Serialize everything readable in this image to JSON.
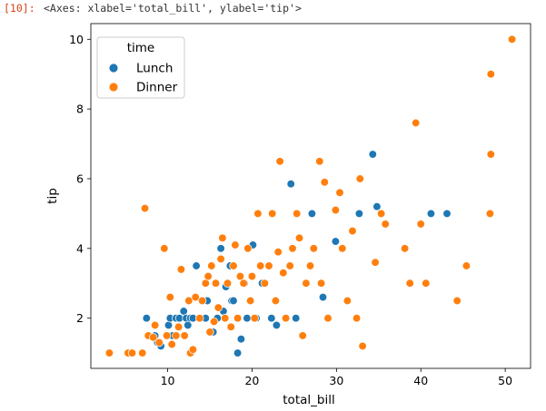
{
  "cell": {
    "prompt": "[10]:",
    "repr": "<Axes: xlabel='total_bill', ylabel='tip'>"
  },
  "colors": {
    "Lunch": "#1f77b4",
    "Dinner": "#ff7f0e"
  },
  "chart_data": {
    "type": "scatter",
    "xlabel": "total_bill",
    "ylabel": "tip",
    "xlim": [
      0.9,
      53
    ],
    "ylim": [
      0.56,
      10.45
    ],
    "xticks": [
      10,
      20,
      30,
      40,
      50
    ],
    "yticks": [
      2,
      4,
      6,
      8,
      10
    ],
    "legend": {
      "title": "time",
      "position": "top-left",
      "entries": [
        "Lunch",
        "Dinner"
      ]
    },
    "series": [
      {
        "name": "Lunch",
        "points": [
          [
            7.5,
            2.0
          ],
          [
            8.5,
            1.5
          ],
          [
            8.8,
            1.3
          ],
          [
            9.2,
            1.2
          ],
          [
            10.1,
            1.8
          ],
          [
            10.3,
            2.0
          ],
          [
            10.6,
            1.5
          ],
          [
            11.0,
            2.0
          ],
          [
            11.4,
            2.0
          ],
          [
            11.9,
            2.2
          ],
          [
            12.2,
            2.0
          ],
          [
            12.4,
            1.8
          ],
          [
            12.7,
            2.0
          ],
          [
            13.0,
            2.0
          ],
          [
            13.4,
            3.5
          ],
          [
            13.8,
            2.0
          ],
          [
            14.5,
            2.0
          ],
          [
            14.7,
            2.5
          ],
          [
            15.4,
            1.6
          ],
          [
            15.9,
            2.0
          ],
          [
            16.3,
            4.0
          ],
          [
            16.6,
            2.2
          ],
          [
            16.9,
            2.9
          ],
          [
            17.4,
            3.5
          ],
          [
            17.6,
            2.5
          ],
          [
            17.8,
            2.5
          ],
          [
            18.3,
            1.0
          ],
          [
            18.7,
            1.4
          ],
          [
            19.1,
            3.0
          ],
          [
            19.4,
            2.0
          ],
          [
            20.1,
            4.1
          ],
          [
            20.5,
            2.0
          ],
          [
            21.2,
            3.0
          ],
          [
            22.3,
            2.0
          ],
          [
            22.9,
            1.8
          ],
          [
            24.6,
            5.85
          ],
          [
            25.2,
            2.0
          ],
          [
            27.1,
            5.0
          ],
          [
            28.4,
            2.6
          ],
          [
            29.9,
            4.2
          ],
          [
            32.7,
            5.0
          ],
          [
            34.3,
            6.7
          ],
          [
            34.8,
            5.2
          ],
          [
            41.2,
            5.0
          ],
          [
            43.1,
            5.0
          ]
        ]
      },
      {
        "name": "Dinner",
        "points": [
          [
            3.1,
            1.0
          ],
          [
            5.3,
            1.0
          ],
          [
            5.8,
            1.0
          ],
          [
            7.0,
            1.0
          ],
          [
            7.3,
            5.15
          ],
          [
            7.7,
            1.5
          ],
          [
            8.3,
            1.45
          ],
          [
            8.5,
            1.8
          ],
          [
            9.0,
            1.3
          ],
          [
            9.6,
            4.0
          ],
          [
            9.9,
            1.5
          ],
          [
            10.3,
            2.6
          ],
          [
            10.5,
            1.25
          ],
          [
            11.0,
            1.5
          ],
          [
            11.3,
            1.75
          ],
          [
            11.6,
            3.4
          ],
          [
            12.0,
            1.5
          ],
          [
            12.5,
            2.5
          ],
          [
            12.7,
            1.0
          ],
          [
            13.0,
            1.1
          ],
          [
            13.3,
            2.6
          ],
          [
            13.8,
            2.0
          ],
          [
            14.1,
            2.5
          ],
          [
            14.5,
            3.0
          ],
          [
            14.8,
            3.2
          ],
          [
            15.0,
            1.6
          ],
          [
            15.2,
            3.5
          ],
          [
            15.5,
            1.9
          ],
          [
            15.7,
            3.0
          ],
          [
            16.0,
            2.3
          ],
          [
            16.3,
            3.7
          ],
          [
            16.5,
            4.3
          ],
          [
            16.8,
            2.0
          ],
          [
            17.1,
            3.0
          ],
          [
            17.5,
            1.75
          ],
          [
            17.8,
            3.5
          ],
          [
            18.0,
            4.1
          ],
          [
            18.3,
            2.0
          ],
          [
            18.6,
            3.2
          ],
          [
            19.0,
            3.0
          ],
          [
            19.5,
            4.0
          ],
          [
            19.8,
            2.5
          ],
          [
            20.0,
            3.2
          ],
          [
            20.3,
            2.0
          ],
          [
            20.7,
            5.0
          ],
          [
            21.0,
            3.5
          ],
          [
            21.5,
            3.0
          ],
          [
            22.0,
            3.5
          ],
          [
            22.4,
            5.0
          ],
          [
            22.8,
            2.5
          ],
          [
            23.1,
            3.9
          ],
          [
            23.3,
            6.5
          ],
          [
            23.7,
            3.3
          ],
          [
            24.0,
            2.0
          ],
          [
            24.5,
            3.5
          ],
          [
            24.8,
            4.0
          ],
          [
            25.3,
            5.0
          ],
          [
            25.6,
            4.3
          ],
          [
            26.0,
            1.5
          ],
          [
            26.4,
            3.0
          ],
          [
            26.9,
            3.5
          ],
          [
            27.3,
            4.0
          ],
          [
            28.0,
            6.5
          ],
          [
            28.2,
            3.0
          ],
          [
            28.6,
            5.9
          ],
          [
            29.0,
            2.0
          ],
          [
            29.9,
            5.1
          ],
          [
            30.4,
            5.6
          ],
          [
            30.7,
            4.0
          ],
          [
            31.3,
            2.5
          ],
          [
            31.9,
            4.5
          ],
          [
            32.4,
            2.0
          ],
          [
            32.8,
            6.0
          ],
          [
            33.1,
            1.2
          ],
          [
            34.6,
            3.6
          ],
          [
            35.3,
            5.0
          ],
          [
            35.8,
            4.7
          ],
          [
            38.1,
            4.0
          ],
          [
            38.7,
            3.0
          ],
          [
            39.4,
            7.6
          ],
          [
            40.0,
            4.7
          ],
          [
            40.6,
            3.0
          ],
          [
            44.3,
            2.5
          ],
          [
            45.4,
            3.5
          ],
          [
            48.2,
            5.0
          ],
          [
            48.3,
            9.0
          ],
          [
            48.3,
            6.7
          ],
          [
            50.8,
            10.0
          ]
        ]
      }
    ]
  }
}
